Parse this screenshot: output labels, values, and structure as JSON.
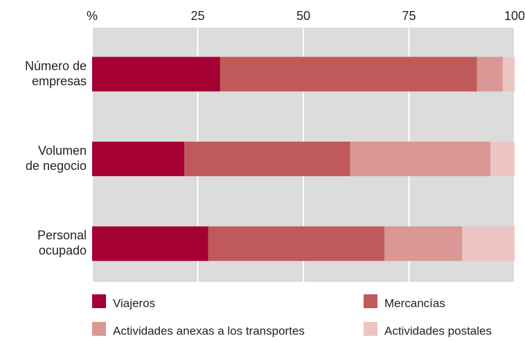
{
  "chart_data": {
    "type": "stacked-bar-horizontal",
    "categories": [
      "Número de\nempresas",
      "Volumen\nde negocio",
      "Personal\nocupado"
    ],
    "series": [
      {
        "name": "Viajeros",
        "color": "#a50034",
        "values": [
          30.3,
          21.8,
          27.5
        ]
      },
      {
        "name": "Mercancías",
        "color": "#c05a5a",
        "values": [
          60.8,
          39.3,
          41.7
        ]
      },
      {
        "name": "Actividades anexas a los transportes",
        "color": "#d99795",
        "values": [
          6.1,
          33.2,
          18.4
        ]
      },
      {
        "name": "Actividades postales",
        "color": "#ecc5c3",
        "values": [
          2.8,
          5.7,
          12.4
        ]
      }
    ],
    "xlim": [
      0,
      100
    ],
    "xticks": [
      {
        "value": 0,
        "label": "%"
      },
      25,
      50,
      75,
      100
    ],
    "grid": true
  }
}
